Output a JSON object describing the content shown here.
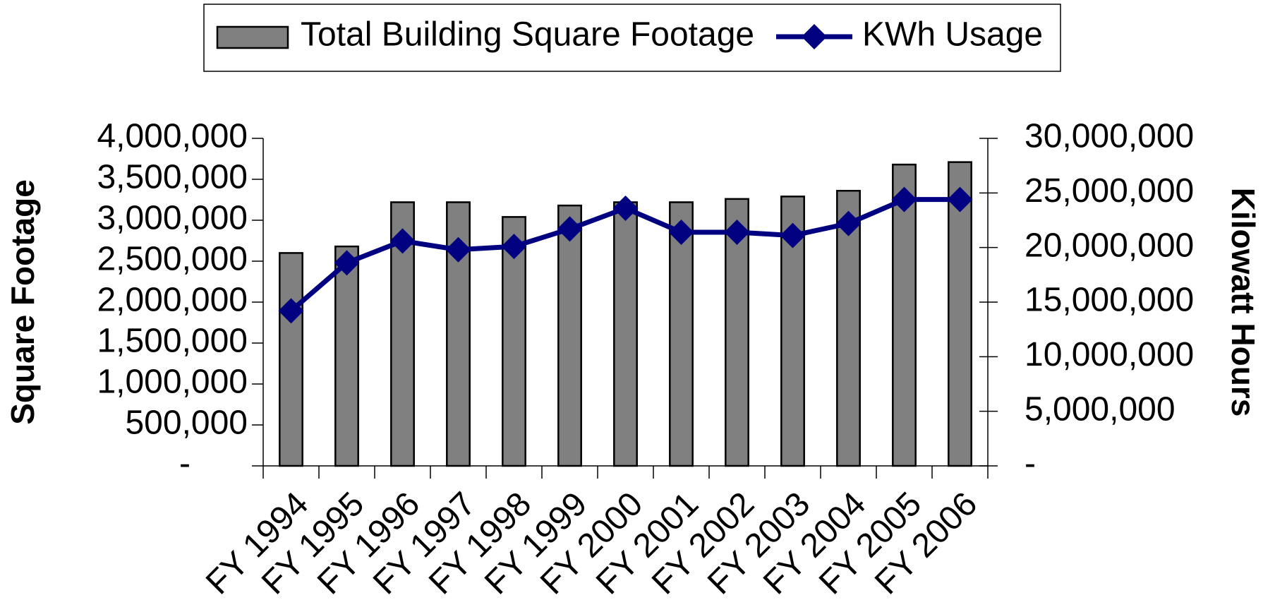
{
  "chart_data": {
    "type": "combo",
    "categories": [
      "FY 1994",
      "FY 1995",
      "FY 1996",
      "FY 1997",
      "FY 1998",
      "FY 1999",
      "FY 2000",
      "FY 2001",
      "FY 2002",
      "FY 2003",
      "FY 2004",
      "FY 2005",
      "FY 2006"
    ],
    "series": [
      {
        "name": "Total Building Square Footage",
        "type": "bar",
        "axis": "y",
        "color": "#808080",
        "values": [
          2600000,
          2680000,
          3220000,
          3220000,
          3040000,
          3180000,
          3220000,
          3220000,
          3260000,
          3290000,
          3360000,
          3680000,
          3710000
        ]
      },
      {
        "name": "KWh Usage",
        "type": "line",
        "axis": "y2",
        "color": "#000080",
        "values": [
          14200000,
          18600000,
          20600000,
          19800000,
          20100000,
          21700000,
          23600000,
          21400000,
          21400000,
          21100000,
          22200000,
          24400000,
          24400000
        ]
      }
    ],
    "ylabel": "Square Footage",
    "y2label": "Kilowatt Hours",
    "ylim": [
      0,
      4000000
    ],
    "yticks": [
      {
        "value": 0,
        "label": "-"
      },
      {
        "value": 500000,
        "label": "500,000"
      },
      {
        "value": 1000000,
        "label": "1,000,000"
      },
      {
        "value": 1500000,
        "label": "1,500,000"
      },
      {
        "value": 2000000,
        "label": "2,000,000"
      },
      {
        "value": 2500000,
        "label": "2,500,000"
      },
      {
        "value": 3000000,
        "label": "3,000,000"
      },
      {
        "value": 3500000,
        "label": "3,500,000"
      },
      {
        "value": 4000000,
        "label": "4,000,000"
      }
    ],
    "y2lim": [
      0,
      30000000
    ],
    "y2ticks": [
      {
        "value": 0,
        "label": "-"
      },
      {
        "value": 5000000,
        "label": "5,000,000"
      },
      {
        "value": 10000000,
        "label": "10,000,000"
      },
      {
        "value": 15000000,
        "label": "15,000,000"
      },
      {
        "value": 20000000,
        "label": "20,000,000"
      },
      {
        "value": 25000000,
        "label": "25,000,000"
      },
      {
        "value": 30000000,
        "label": "30,000,000"
      }
    ],
    "legend": "top"
  }
}
